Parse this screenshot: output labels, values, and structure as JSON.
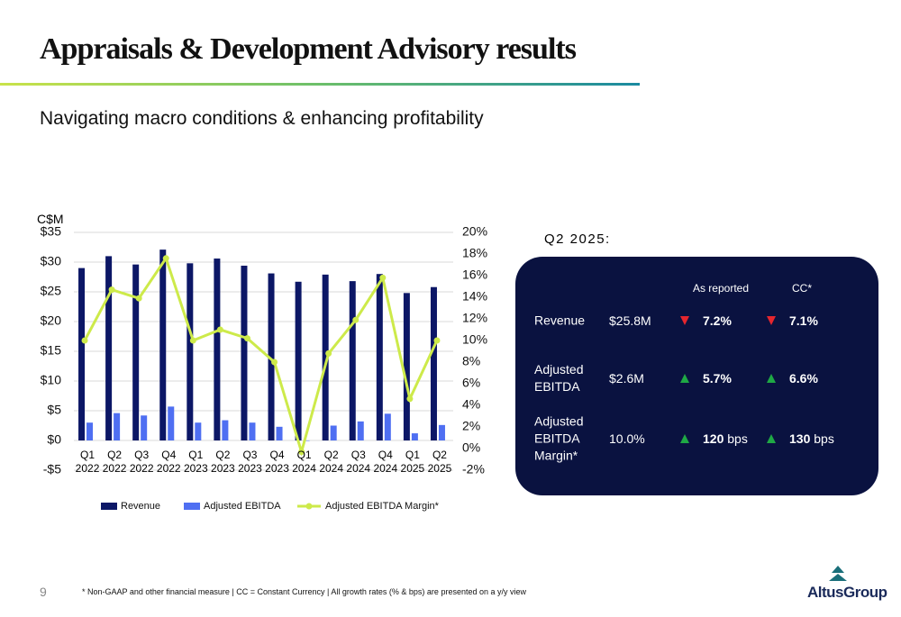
{
  "header": {
    "title": "Appraisals & Development Advisory results",
    "subtitle": "Navigating macro conditions & enhancing profitability"
  },
  "chart_data": {
    "type": "bar_line",
    "y_label": "C$M",
    "categories": [
      "Q1 2022",
      "Q2 2022",
      "Q3 2022",
      "Q4 2022",
      "Q1 2023",
      "Q2 2023",
      "Q3 2023",
      "Q4 2023",
      "Q1 2024",
      "Q2 2024",
      "Q3 2024",
      "Q4 2024",
      "Q1 2025",
      "Q2 2025"
    ],
    "series": [
      {
        "name": "Revenue",
        "color": "#0c1766",
        "kind": "bar",
        "values": [
          29.0,
          31.0,
          29.6,
          32.1,
          29.8,
          30.6,
          29.4,
          28.1,
          26.7,
          27.9,
          26.8,
          28.0,
          24.8,
          25.8
        ]
      },
      {
        "name": "Adjusted EBITDA",
        "color": "#4f6ff2",
        "kind": "bar",
        "values": [
          3.0,
          4.6,
          4.2,
          5.7,
          3.0,
          3.4,
          3.0,
          2.3,
          0.0,
          2.5,
          3.2,
          4.5,
          1.2,
          2.6
        ]
      },
      {
        "name": "Adjusted EBITDA Margin*",
        "color": "#cdea4a",
        "kind": "line",
        "axis": "y2",
        "values": [
          10.0,
          14.7,
          13.9,
          17.6,
          10.0,
          11.0,
          10.2,
          8.0,
          -0.3,
          8.8,
          11.9,
          15.8,
          4.6,
          10.0
        ]
      }
    ],
    "ylim": [
      -5,
      35
    ],
    "yticks": [
      {
        "value": -5,
        "label": "-$5"
      },
      {
        "value": 0,
        "label": "$0"
      },
      {
        "value": 5,
        "label": "$5"
      },
      {
        "value": 10,
        "label": "$10"
      },
      {
        "value": 15,
        "label": "$15"
      },
      {
        "value": 20,
        "label": "$20"
      },
      {
        "value": 25,
        "label": "$25"
      },
      {
        "value": 30,
        "label": "$30"
      },
      {
        "value": 35,
        "label": "$35"
      }
    ],
    "y2lim": [
      -2,
      20
    ],
    "y2ticks": [
      {
        "value": -2,
        "label": "-2%"
      },
      {
        "value": 0,
        "label": "0%"
      },
      {
        "value": 2,
        "label": "2%"
      },
      {
        "value": 4,
        "label": "4%"
      },
      {
        "value": 6,
        "label": "6%"
      },
      {
        "value": 8,
        "label": "8%"
      },
      {
        "value": 10,
        "label": "10%"
      },
      {
        "value": 12,
        "label": "12%"
      },
      {
        "value": 14,
        "label": "14%"
      },
      {
        "value": 16,
        "label": "16%"
      },
      {
        "value": 18,
        "label": "18%"
      },
      {
        "value": 20,
        "label": "20%"
      }
    ],
    "grid": true,
    "legend": "bottom"
  },
  "table": {
    "caption": "Q2 2025:",
    "headers": [
      "As reported",
      "CC*"
    ],
    "rows": [
      {
        "label": "Revenue",
        "value": "$25.8M",
        "reported_dir": "down",
        "reported": "7.2%",
        "cc_dir": "down",
        "cc": "7.1%"
      },
      {
        "label": "Adjusted EBITDA",
        "value": "$2.6M",
        "reported_dir": "up",
        "reported": "5.7%",
        "cc_dir": "up",
        "cc": "6.6%"
      },
      {
        "label": "Adjusted EBITDA Margin*",
        "value": "10.0%",
        "reported_dir": "up",
        "reported": "120",
        "reported_unit": "bps",
        "cc_dir": "up",
        "cc": "130",
        "cc_unit": "bps"
      }
    ]
  },
  "footer": {
    "page": "9",
    "note": "* Non-GAAP and other financial measure | CC = Constant Currency | All growth rates (% & bps) are presented on a y/y view",
    "logo": "AltusGroup"
  }
}
